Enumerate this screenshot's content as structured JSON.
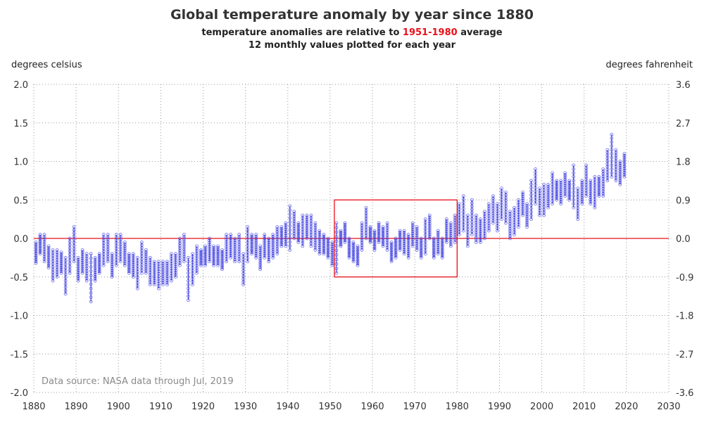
{
  "title": "Global temperature anomaly by year since 1880",
  "subtitle": {
    "prefix": "temperature anomalies are relative to ",
    "range": "1951-1980",
    "suffix": " average",
    "line2": "12 monthly values plotted for each year"
  },
  "source_note": "Data source: NASA data through Jul, 2019",
  "colors": {
    "series": "#3a3ae0",
    "reference_line": "#e8101a",
    "highlight_box": "#e8101a",
    "subtitle_highlight": "#e8101a",
    "grid": "#9a9a9a",
    "source_text": "#8a8a8a"
  },
  "chart_data": {
    "type": "scatter",
    "title": "Global temperature anomaly by year since 1880",
    "ylabel_left": "degrees celsius",
    "ylabel_right": "degrees fahrenheit",
    "xlim": [
      1880,
      2030
    ],
    "ylim": [
      -2.0,
      2.0
    ],
    "x_ticks": [
      "1880",
      "1890",
      "1900",
      "1910",
      "1920",
      "1930",
      "1940",
      "1950",
      "1960",
      "1970",
      "1980",
      "1990",
      "2000",
      "2010",
      "2020",
      "2030"
    ],
    "y_ticks_left": [
      "2.0",
      "1.5",
      "1.0",
      "0.5",
      "0.0",
      "-0.5",
      "-1.0",
      "-1.5",
      "-2.0"
    ],
    "y_ticks_right": [
      "3.6",
      "2.7",
      "1.8",
      "0.9",
      "0.0",
      "-0.9",
      "-1.8",
      "-2.7",
      "-3.6"
    ],
    "grid": "dotted",
    "reference_line_y": 0.0,
    "highlight_box": {
      "x": [
        1951,
        1980
      ],
      "y": [
        -0.5,
        0.5
      ]
    },
    "series": [
      {
        "marker": "open circle",
        "per_year_monthly_range": [
          [
            1880,
            -0.32,
            -0.05
          ],
          [
            1881,
            -0.2,
            0.05
          ],
          [
            1882,
            -0.3,
            0.05
          ],
          [
            1883,
            -0.38,
            -0.1
          ],
          [
            1884,
            -0.55,
            -0.15
          ],
          [
            1885,
            -0.5,
            -0.15
          ],
          [
            1886,
            -0.45,
            -0.18
          ],
          [
            1887,
            -0.72,
            -0.25
          ],
          [
            1888,
            -0.45,
            0.0
          ],
          [
            1889,
            -0.3,
            0.15
          ],
          [
            1890,
            -0.55,
            -0.25
          ],
          [
            1891,
            -0.45,
            -0.15
          ],
          [
            1892,
            -0.55,
            -0.2
          ],
          [
            1893,
            -0.82,
            -0.2
          ],
          [
            1894,
            -0.55,
            -0.25
          ],
          [
            1895,
            -0.45,
            -0.2
          ],
          [
            1896,
            -0.35,
            0.05
          ],
          [
            1897,
            -0.3,
            0.05
          ],
          [
            1898,
            -0.5,
            -0.2
          ],
          [
            1899,
            -0.35,
            0.05
          ],
          [
            1900,
            -0.3,
            0.05
          ],
          [
            1901,
            -0.35,
            -0.05
          ],
          [
            1902,
            -0.45,
            -0.2
          ],
          [
            1903,
            -0.5,
            -0.2
          ],
          [
            1904,
            -0.65,
            -0.25
          ],
          [
            1905,
            -0.45,
            -0.05
          ],
          [
            1906,
            -0.45,
            -0.15
          ],
          [
            1907,
            -0.6,
            -0.25
          ],
          [
            1908,
            -0.6,
            -0.3
          ],
          [
            1909,
            -0.65,
            -0.3
          ],
          [
            1910,
            -0.6,
            -0.3
          ],
          [
            1911,
            -0.6,
            -0.3
          ],
          [
            1912,
            -0.55,
            -0.2
          ],
          [
            1913,
            -0.5,
            -0.2
          ],
          [
            1914,
            -0.35,
            0.0
          ],
          [
            1915,
            -0.3,
            0.05
          ],
          [
            1916,
            -0.8,
            -0.25
          ],
          [
            1917,
            -0.6,
            -0.2
          ],
          [
            1918,
            -0.45,
            -0.1
          ],
          [
            1919,
            -0.35,
            -0.15
          ],
          [
            1920,
            -0.35,
            -0.1
          ],
          [
            1921,
            -0.3,
            0.0
          ],
          [
            1922,
            -0.35,
            -0.1
          ],
          [
            1923,
            -0.35,
            -0.1
          ],
          [
            1924,
            -0.4,
            -0.15
          ],
          [
            1925,
            -0.3,
            0.05
          ],
          [
            1926,
            -0.25,
            0.05
          ],
          [
            1927,
            -0.3,
            0.0
          ],
          [
            1928,
            -0.3,
            0.05
          ],
          [
            1929,
            -0.6,
            -0.2
          ],
          [
            1930,
            -0.3,
            0.15
          ],
          [
            1931,
            -0.2,
            0.05
          ],
          [
            1932,
            -0.25,
            0.05
          ],
          [
            1933,
            -0.4,
            -0.1
          ],
          [
            1934,
            -0.25,
            0.05
          ],
          [
            1935,
            -0.3,
            0.0
          ],
          [
            1936,
            -0.25,
            0.05
          ],
          [
            1937,
            -0.2,
            0.15
          ],
          [
            1938,
            -0.1,
            0.15
          ],
          [
            1939,
            -0.1,
            0.2
          ],
          [
            1940,
            -0.15,
            0.42
          ],
          [
            1941,
            0.0,
            0.35
          ],
          [
            1942,
            -0.05,
            0.2
          ],
          [
            1943,
            -0.1,
            0.3
          ],
          [
            1944,
            0.0,
            0.3
          ],
          [
            1945,
            -0.1,
            0.3
          ],
          [
            1946,
            -0.15,
            0.2
          ],
          [
            1947,
            -0.2,
            0.1
          ],
          [
            1948,
            -0.2,
            0.05
          ],
          [
            1949,
            -0.25,
            0.0
          ],
          [
            1950,
            -0.35,
            -0.05
          ],
          [
            1951,
            -0.45,
            0.2
          ],
          [
            1952,
            -0.1,
            0.1
          ],
          [
            1953,
            -0.05,
            0.2
          ],
          [
            1954,
            -0.25,
            0.0
          ],
          [
            1955,
            -0.3,
            -0.05
          ],
          [
            1956,
            -0.35,
            -0.1
          ],
          [
            1957,
            -0.15,
            0.2
          ],
          [
            1958,
            0.0,
            0.4
          ],
          [
            1959,
            -0.05,
            0.15
          ],
          [
            1960,
            -0.15,
            0.1
          ],
          [
            1961,
            -0.05,
            0.2
          ],
          [
            1962,
            -0.1,
            0.15
          ],
          [
            1963,
            -0.15,
            0.2
          ],
          [
            1964,
            -0.3,
            -0.05
          ],
          [
            1965,
            -0.25,
            0.0
          ],
          [
            1966,
            -0.15,
            0.1
          ],
          [
            1967,
            -0.2,
            0.1
          ],
          [
            1968,
            -0.25,
            0.05
          ],
          [
            1969,
            -0.1,
            0.2
          ],
          [
            1970,
            -0.15,
            0.15
          ],
          [
            1971,
            -0.25,
            0.0
          ],
          [
            1972,
            -0.2,
            0.25
          ],
          [
            1973,
            0.0,
            0.3
          ],
          [
            1974,
            -0.25,
            0.0
          ],
          [
            1975,
            -0.2,
            0.1
          ],
          [
            1976,
            -0.25,
            0.0
          ],
          [
            1977,
            -0.05,
            0.25
          ],
          [
            1978,
            -0.1,
            0.2
          ],
          [
            1979,
            -0.05,
            0.3
          ],
          [
            1980,
            0.05,
            0.45
          ],
          [
            1981,
            0.1,
            0.55
          ],
          [
            1982,
            -0.1,
            0.3
          ],
          [
            1983,
            0.05,
            0.5
          ],
          [
            1984,
            -0.05,
            0.3
          ],
          [
            1985,
            -0.05,
            0.25
          ],
          [
            1986,
            0.0,
            0.35
          ],
          [
            1987,
            0.1,
            0.45
          ],
          [
            1988,
            0.2,
            0.55
          ],
          [
            1989,
            0.1,
            0.45
          ],
          [
            1990,
            0.25,
            0.65
          ],
          [
            1991,
            0.2,
            0.6
          ],
          [
            1992,
            0.0,
            0.35
          ],
          [
            1993,
            0.05,
            0.4
          ],
          [
            1994,
            0.15,
            0.5
          ],
          [
            1995,
            0.3,
            0.6
          ],
          [
            1996,
            0.15,
            0.45
          ],
          [
            1997,
            0.25,
            0.75
          ],
          [
            1998,
            0.45,
            0.9
          ],
          [
            1999,
            0.3,
            0.65
          ],
          [
            2000,
            0.3,
            0.7
          ],
          [
            2001,
            0.4,
            0.7
          ],
          [
            2002,
            0.45,
            0.85
          ],
          [
            2003,
            0.5,
            0.75
          ],
          [
            2004,
            0.45,
            0.75
          ],
          [
            2005,
            0.55,
            0.85
          ],
          [
            2006,
            0.5,
            0.75
          ],
          [
            2007,
            0.4,
            0.95
          ],
          [
            2008,
            0.25,
            0.65
          ],
          [
            2009,
            0.45,
            0.75
          ],
          [
            2010,
            0.55,
            0.95
          ],
          [
            2011,
            0.45,
            0.75
          ],
          [
            2012,
            0.4,
            0.8
          ],
          [
            2013,
            0.55,
            0.8
          ],
          [
            2014,
            0.55,
            0.9
          ],
          [
            2015,
            0.75,
            1.15
          ],
          [
            2016,
            0.8,
            1.35
          ],
          [
            2017,
            0.75,
            1.15
          ],
          [
            2018,
            0.7,
            1.0
          ],
          [
            2019,
            0.8,
            1.1
          ]
        ]
      }
    ]
  }
}
